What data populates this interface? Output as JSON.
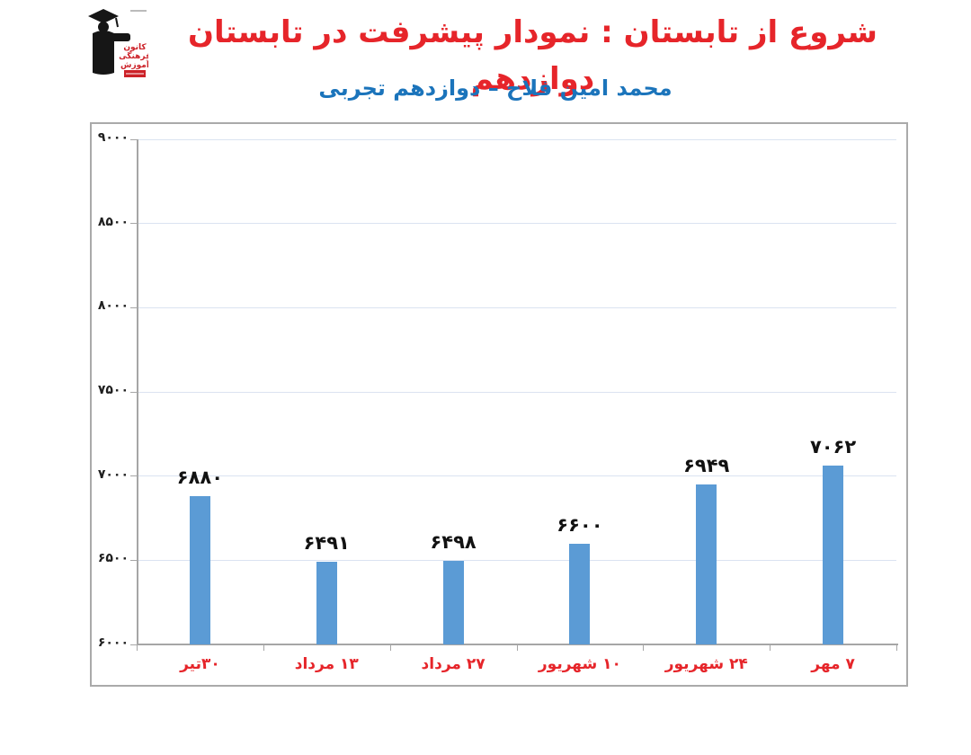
{
  "header": {
    "title": "شروع از تابستان : نمودار پیشرفت در تابستان دوازدهم",
    "subtitle": "محمد امین فلاح – دوازدهم تجربی",
    "title_color": "#e6252a",
    "subtitle_color": "#1b74bb",
    "logo": {
      "name": "kanoon-farhangi-amoozesh-logo",
      "lines": [
        "کانون",
        "فرهنگی",
        "آموزش"
      ],
      "accent_color": "#cc2128",
      "figure_color": "#161616"
    }
  },
  "chart_data": {
    "type": "bar",
    "title": "شروع از تابستان : نمودار پیشرفت در تابستان دوازدهم",
    "subtitle": "محمد امین فلاح – دوازدهم تجربی",
    "categories": [
      "۳۰تیر",
      "۱۳ مرداد",
      "۲۷ مرداد",
      "۱۰ شهریور",
      "۲۴ شهریور",
      "۷ مهر"
    ],
    "values": [
      6880,
      6491,
      6498,
      6600,
      6949,
      7062
    ],
    "value_labels": [
      "۶۸۸۰",
      "۶۴۹۱",
      "۶۴۹۸",
      "۶۶۰۰",
      "۶۹۴۹",
      "۷۰۶۲"
    ],
    "xlabel": "",
    "ylabel": "",
    "ylim": [
      6000,
      9000
    ],
    "y_ticks": [
      6000,
      6500,
      7000,
      7500,
      8000,
      8500,
      9000
    ],
    "y_tick_labels": [
      "۶۰۰۰",
      "۶۵۰۰",
      "۷۰۰۰",
      "۷۵۰۰",
      "۸۰۰۰",
      "۸۵۰۰",
      "۹۰۰۰"
    ],
    "grid": true,
    "legend": false,
    "bar_color": "#5b9bd5",
    "grid_color": "#dbe3f1",
    "axis_color": "#a6a6a6",
    "x_label_color": "#e6252a",
    "value_label_color": "#121212",
    "y_label_color": "#1f1f1f"
  }
}
